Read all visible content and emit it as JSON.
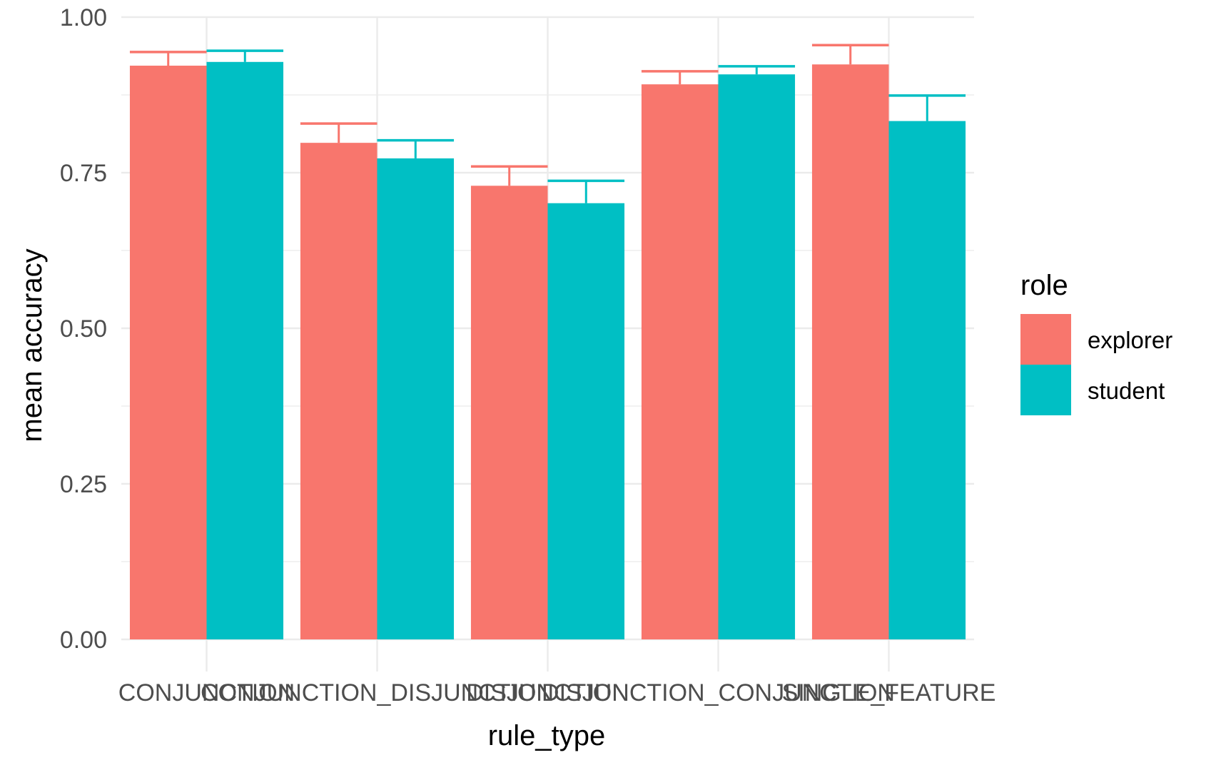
{
  "chart_data": {
    "type": "bar",
    "xlabel": "rule_type",
    "ylabel": "mean accuracy",
    "ylim": [
      0,
      1
    ],
    "y_ticks": [
      "0.00",
      "0.25",
      "0.50",
      "0.75",
      "1.00"
    ],
    "categories": [
      "CONJUNCTION",
      "CONJUNCTION_DISJUNCTION",
      "DISJUNCTION",
      "DISJUNCTION_CONJUNCTION",
      "SINGLE_FEATURE"
    ],
    "series": [
      {
        "name": "explorer",
        "color": "#F8766D",
        "values": [
          0.922,
          0.798,
          0.729,
          0.892,
          0.924
        ],
        "error_upper": [
          0.944,
          0.829,
          0.76,
          0.913,
          0.955
        ]
      },
      {
        "name": "student",
        "color": "#00BFC4",
        "values": [
          0.928,
          0.773,
          0.701,
          0.908,
          0.833
        ],
        "error_upper": [
          0.946,
          0.802,
          0.737,
          0.921,
          0.874
        ]
      }
    ],
    "legend": {
      "title": "role",
      "position": "right"
    },
    "grid": true
  }
}
